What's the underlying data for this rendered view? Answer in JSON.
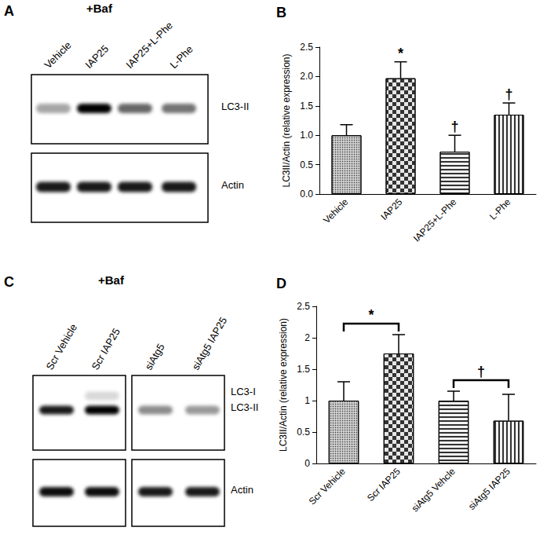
{
  "chart_data": [
    {
      "type": "bar",
      "title": "B",
      "categories": [
        "Vehicle",
        "IAP25",
        "IAP25+L-Phe",
        "L-Phe"
      ],
      "values": [
        1.0,
        1.97,
        0.72,
        1.35
      ],
      "errors": [
        0.18,
        0.28,
        0.28,
        0.2
      ],
      "colors": [
        "#d0d0d0",
        "#e6e6e6",
        "#f2f2f2",
        "#f2f2f2"
      ],
      "y_label": "LC3II/Actin (relative expression)",
      "ylim": [
        0,
        2.5
      ],
      "yticks": [
        {
          "value": 0,
          "label": "0.0"
        },
        0.5,
        {
          "value": 1,
          "label": "1.0"
        },
        1.5,
        {
          "value": 2,
          "label": "2.0"
        },
        2.5
      ],
      "grid": false,
      "annotations": [
        {
          "text": "*",
          "category": "IAP25"
        },
        {
          "text": "†",
          "category": "IAP25+L-Phe"
        },
        {
          "text": "†",
          "category": "L-Phe"
        }
      ]
    },
    {
      "type": "bar",
      "title": "D",
      "categories": [
        "Scr Vehicle",
        "Scr IAP25",
        "siAtg5 Vehcle",
        "siAtg5 IAP25"
      ],
      "values": [
        1.0,
        1.75,
        1.0,
        0.68
      ],
      "errors": [
        0.3,
        0.3,
        0.15,
        0.42
      ],
      "colors": [
        "#d0d0d0",
        "#e6e6e6",
        "#f2f2f2",
        "#f2f2f2"
      ],
      "y_label": "LC3II/Actin (relative expression)",
      "ylim": [
        0,
        2.5
      ],
      "yticks": [
        0,
        0.5,
        1,
        1.5,
        2,
        2.5
      ],
      "grid": false,
      "annotations": [
        {
          "text": "*",
          "categories": [
            "Scr Vehicle",
            "Scr IAP25"
          ]
        },
        {
          "text": "†",
          "categories": [
            "siAtg5 Vehcle",
            "siAtg5 IAP25"
          ]
        }
      ]
    }
  ],
  "blots": [
    {
      "panel": "A",
      "treatment": "+Baf",
      "lanes": [
        "Vehicle",
        "IAP25",
        "IAP25+L-Phe",
        "L-Phe"
      ],
      "bands": [
        "LC3-II",
        "Actin"
      ]
    },
    {
      "panel": "C",
      "treatment": "+Baf",
      "lanes": [
        "Scr Vehicle",
        "Scr IAP25",
        "siAtg5",
        "siAtg5 IAP25"
      ],
      "bands": [
        "LC3-I",
        "LC3-II",
        "Actin"
      ]
    }
  ]
}
